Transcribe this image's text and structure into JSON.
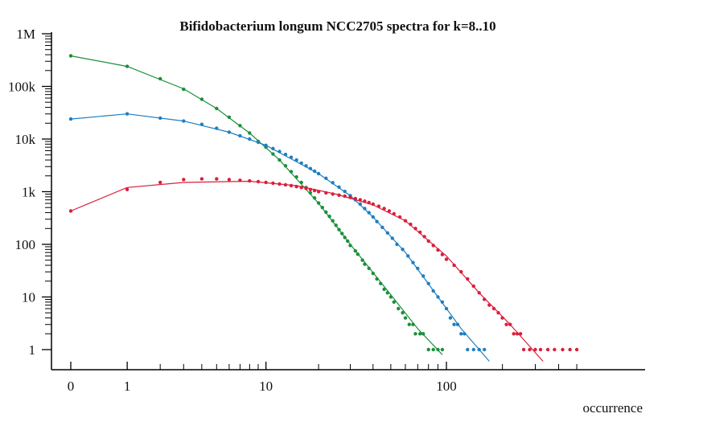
{
  "chart_data": {
    "type": "scatter",
    "title": "Bifidobacterium longum NCC2705 spectra for k=8..10",
    "xlabel": "occurrence",
    "ylabel": "",
    "x_scale": "log(x+1)",
    "y_scale": "log",
    "xlim": [
      0,
      600
    ],
    "ylim": [
      0.5,
      1000000
    ],
    "grid": false,
    "x_ticks": [
      {
        "value": 0,
        "label": "0"
      },
      {
        "value": 1,
        "label": "1"
      },
      {
        "value": 10,
        "label": "10"
      },
      {
        "value": 100,
        "label": "100"
      }
    ],
    "y_ticks": [
      {
        "value": 1,
        "label": "1"
      },
      {
        "value": 10,
        "label": "10"
      },
      {
        "value": 100,
        "label": "100"
      },
      {
        "value": 1000,
        "label": "1k"
      },
      {
        "value": 10000,
        "label": "10k"
      },
      {
        "value": 100000,
        "label": "100k"
      },
      {
        "value": 1000000,
        "label": "1M"
      }
    ],
    "series": [
      {
        "color": "#1a8f3a",
        "points": [
          [
            0,
            380000
          ],
          [
            1,
            240000
          ],
          [
            2,
            140000
          ],
          [
            3,
            88000
          ],
          [
            4,
            57000
          ],
          [
            5,
            38000
          ],
          [
            6,
            26000
          ],
          [
            7,
            18000
          ],
          [
            8,
            13000
          ],
          [
            9,
            9000
          ],
          [
            10,
            7000
          ],
          [
            11,
            5200
          ],
          [
            12,
            4000
          ],
          [
            13,
            3100
          ],
          [
            14,
            2400
          ],
          [
            15,
            1900
          ],
          [
            16,
            1500
          ],
          [
            17,
            1200
          ],
          [
            18,
            950
          ],
          [
            19,
            760
          ],
          [
            20,
            610
          ],
          [
            21,
            500
          ],
          [
            22,
            410
          ],
          [
            23,
            340
          ],
          [
            24,
            280
          ],
          [
            25,
            230
          ],
          [
            26,
            190
          ],
          [
            27,
            160
          ],
          [
            28,
            135
          ],
          [
            29,
            115
          ],
          [
            30,
            95
          ],
          [
            32,
            75
          ],
          [
            33,
            65
          ],
          [
            35,
            50
          ],
          [
            36,
            42
          ],
          [
            38,
            35
          ],
          [
            40,
            28
          ],
          [
            42,
            22
          ],
          [
            44,
            18
          ],
          [
            46,
            14
          ],
          [
            48,
            12
          ],
          [
            50,
            10
          ],
          [
            52,
            8
          ],
          [
            55,
            6
          ],
          [
            58,
            5
          ],
          [
            60,
            4
          ],
          [
            63,
            3
          ],
          [
            66,
            3
          ],
          [
            68,
            2
          ],
          [
            72,
            2
          ],
          [
            75,
            2
          ],
          [
            80,
            1
          ],
          [
            85,
            1
          ],
          [
            90,
            1
          ],
          [
            95,
            1
          ]
        ],
        "fit": [
          [
            0,
            380000
          ],
          [
            1,
            240000
          ],
          [
            3,
            90000
          ],
          [
            5,
            38000
          ],
          [
            8,
            13000
          ],
          [
            12,
            4000
          ],
          [
            20,
            600
          ],
          [
            30,
            100
          ],
          [
            50,
            11
          ],
          [
            70,
            2.5
          ],
          [
            95,
            0.8
          ]
        ]
      },
      {
        "color": "#1f7fbf",
        "points": [
          [
            0,
            24000
          ],
          [
            1,
            30000
          ],
          [
            2,
            25000
          ],
          [
            3,
            22000
          ],
          [
            4,
            19000
          ],
          [
            5,
            16000
          ],
          [
            6,
            13500
          ],
          [
            7,
            11500
          ],
          [
            8,
            10000
          ],
          [
            9,
            8700
          ],
          [
            10,
            7600
          ],
          [
            11,
            6600
          ],
          [
            12,
            5800
          ],
          [
            13,
            5100
          ],
          [
            14,
            4500
          ],
          [
            15,
            4000
          ],
          [
            16,
            3500
          ],
          [
            17,
            3100
          ],
          [
            18,
            2750
          ],
          [
            19,
            2450
          ],
          [
            20,
            2200
          ],
          [
            22,
            1800
          ],
          [
            24,
            1480
          ],
          [
            26,
            1220
          ],
          [
            28,
            1010
          ],
          [
            30,
            840
          ],
          [
            32,
            700
          ],
          [
            34,
            580
          ],
          [
            36,
            480
          ],
          [
            38,
            400
          ],
          [
            40,
            330
          ],
          [
            42,
            270
          ],
          [
            45,
            210
          ],
          [
            48,
            165
          ],
          [
            51,
            130
          ],
          [
            54,
            100
          ],
          [
            58,
            80
          ],
          [
            62,
            60
          ],
          [
            66,
            45
          ],
          [
            70,
            35
          ],
          [
            75,
            25
          ],
          [
            80,
            18
          ],
          [
            85,
            13
          ],
          [
            90,
            10
          ],
          [
            95,
            8
          ],
          [
            100,
            6
          ],
          [
            105,
            4
          ],
          [
            110,
            3
          ],
          [
            115,
            3
          ],
          [
            120,
            2
          ],
          [
            125,
            2
          ],
          [
            130,
            1
          ],
          [
            140,
            1
          ],
          [
            150,
            1
          ],
          [
            160,
            1
          ]
        ],
        "fit": [
          [
            0,
            24000
          ],
          [
            1,
            30000
          ],
          [
            3,
            22000
          ],
          [
            6,
            13500
          ],
          [
            10,
            7600
          ],
          [
            20,
            2200
          ],
          [
            30,
            840
          ],
          [
            40,
            330
          ],
          [
            60,
            70
          ],
          [
            90,
            10
          ],
          [
            120,
            2.5
          ],
          [
            170,
            0.6
          ]
        ]
      },
      {
        "color": "#d91f3a",
        "points": [
          [
            0,
            430
          ],
          [
            1,
            1100
          ],
          [
            2,
            1500
          ],
          [
            3,
            1700
          ],
          [
            4,
            1750
          ],
          [
            5,
            1750
          ],
          [
            6,
            1700
          ],
          [
            7,
            1650
          ],
          [
            8,
            1600
          ],
          [
            9,
            1550
          ],
          [
            10,
            1500
          ],
          [
            11,
            1450
          ],
          [
            12,
            1400
          ],
          [
            13,
            1350
          ],
          [
            14,
            1300
          ],
          [
            15,
            1250
          ],
          [
            16,
            1200
          ],
          [
            17,
            1150
          ],
          [
            18,
            1100
          ],
          [
            19,
            1050
          ],
          [
            20,
            1000
          ],
          [
            22,
            950
          ],
          [
            24,
            900
          ],
          [
            26,
            860
          ],
          [
            28,
            820
          ],
          [
            30,
            780
          ],
          [
            32,
            740
          ],
          [
            34,
            700
          ],
          [
            36,
            660
          ],
          [
            38,
            620
          ],
          [
            40,
            580
          ],
          [
            43,
            530
          ],
          [
            46,
            480
          ],
          [
            49,
            430
          ],
          [
            52,
            380
          ],
          [
            56,
            330
          ],
          [
            60,
            280
          ],
          [
            64,
            240
          ],
          [
            68,
            200
          ],
          [
            72,
            170
          ],
          [
            76,
            140
          ],
          [
            80,
            115
          ],
          [
            85,
            95
          ],
          [
            90,
            78
          ],
          [
            95,
            64
          ],
          [
            100,
            52
          ],
          [
            110,
            40
          ],
          [
            120,
            30
          ],
          [
            130,
            22
          ],
          [
            140,
            16
          ],
          [
            150,
            12
          ],
          [
            160,
            9
          ],
          [
            170,
            7
          ],
          [
            180,
            6
          ],
          [
            190,
            5
          ],
          [
            200,
            4
          ],
          [
            210,
            3
          ],
          [
            220,
            3
          ],
          [
            230,
            2
          ],
          [
            240,
            2
          ],
          [
            250,
            2
          ],
          [
            260,
            1
          ],
          [
            280,
            1
          ],
          [
            300,
            1
          ],
          [
            320,
            1
          ],
          [
            350,
            1
          ],
          [
            380,
            1
          ],
          [
            420,
            1
          ],
          [
            460,
            1
          ],
          [
            500,
            1
          ]
        ],
        "fit": [
          [
            0,
            430
          ],
          [
            1,
            1200
          ],
          [
            3,
            1500
          ],
          [
            8,
            1580
          ],
          [
            15,
            1300
          ],
          [
            25,
            900
          ],
          [
            40,
            560
          ],
          [
            60,
            280
          ],
          [
            100,
            60
          ],
          [
            150,
            12
          ],
          [
            220,
            3
          ],
          [
            330,
            0.6
          ]
        ]
      }
    ]
  }
}
